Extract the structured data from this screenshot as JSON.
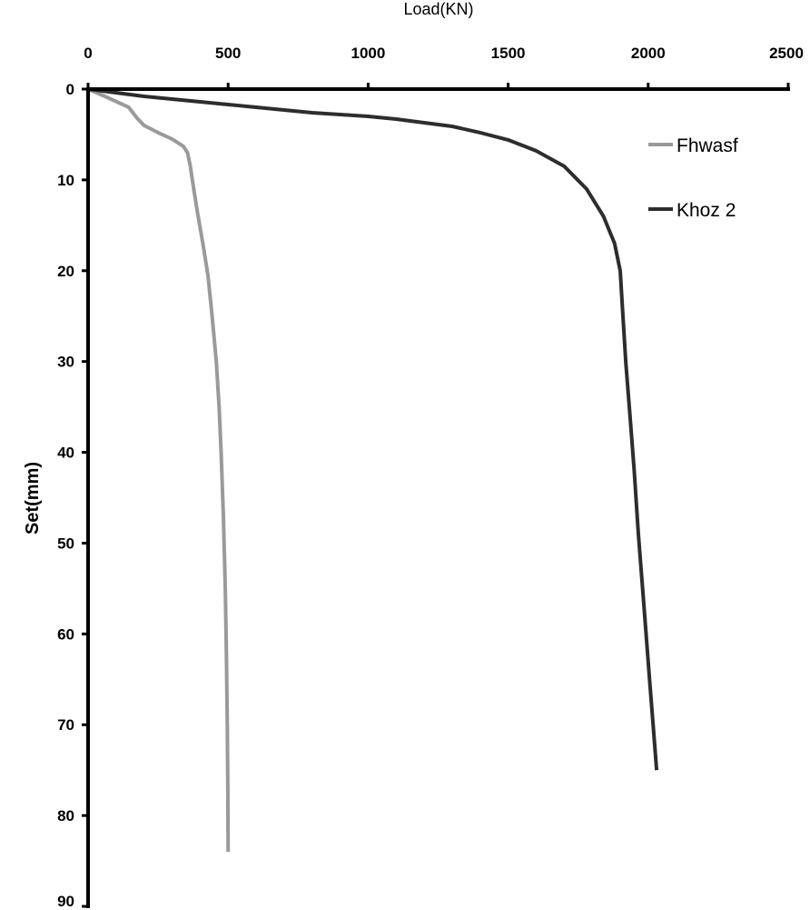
{
  "chart_data": {
    "type": "line",
    "title": "",
    "xlabel": "Load(KN)",
    "ylabel": "Set(mm)",
    "x_axis_position": "top",
    "y_axis_inverted": true,
    "xlim": [
      0,
      2500
    ],
    "ylim": [
      0,
      90
    ],
    "x_ticks": [
      "0",
      "500",
      "1000",
      "1500",
      "2000",
      "2500"
    ],
    "y_ticks": [
      "0",
      "10",
      "20",
      "30",
      "40",
      "50",
      "60",
      "70",
      "80",
      "90"
    ],
    "grid": false,
    "legend_position": "top-right",
    "series": [
      {
        "name": "Fhwasf",
        "color": "#9a9a9a",
        "points": [
          [
            0,
            0
          ],
          [
            60,
            0.8
          ],
          [
            110,
            1.5
          ],
          [
            145,
            2.0
          ],
          [
            175,
            3.2
          ],
          [
            200,
            4.0
          ],
          [
            250,
            4.8
          ],
          [
            300,
            5.5
          ],
          [
            340,
            6.3
          ],
          [
            355,
            7.0
          ],
          [
            365,
            8.5
          ],
          [
            375,
            10.5
          ],
          [
            390,
            13.5
          ],
          [
            410,
            17.0
          ],
          [
            428,
            20.5
          ],
          [
            443,
            25.0
          ],
          [
            458,
            30.0
          ],
          [
            468,
            35.0
          ],
          [
            475,
            40.0
          ],
          [
            483,
            47.0
          ],
          [
            490,
            55.0
          ],
          [
            494,
            62.0
          ],
          [
            497,
            70.0
          ],
          [
            499,
            77.0
          ],
          [
            500,
            84.0
          ]
        ]
      },
      {
        "name": "Khoz 2",
        "color": "#2d2d2d",
        "points": [
          [
            0,
            0
          ],
          [
            100,
            0.4
          ],
          [
            200,
            0.8
          ],
          [
            300,
            1.1
          ],
          [
            400,
            1.4
          ],
          [
            500,
            1.7
          ],
          [
            600,
            2.0
          ],
          [
            700,
            2.3
          ],
          [
            800,
            2.6
          ],
          [
            900,
            2.8
          ],
          [
            1000,
            3.0
          ],
          [
            1100,
            3.3
          ],
          [
            1200,
            3.7
          ],
          [
            1300,
            4.1
          ],
          [
            1400,
            4.8
          ],
          [
            1500,
            5.6
          ],
          [
            1600,
            6.8
          ],
          [
            1700,
            8.5
          ],
          [
            1780,
            11.0
          ],
          [
            1840,
            14.0
          ],
          [
            1880,
            17.0
          ],
          [
            1900,
            20.0
          ],
          [
            1910,
            25.0
          ],
          [
            1920,
            30.0
          ],
          [
            1935,
            36.0
          ],
          [
            1950,
            42.0
          ],
          [
            1965,
            49.0
          ],
          [
            1985,
            57.0
          ],
          [
            2005,
            65.0
          ],
          [
            2020,
            71.0
          ],
          [
            2030,
            75.0
          ]
        ]
      }
    ]
  }
}
